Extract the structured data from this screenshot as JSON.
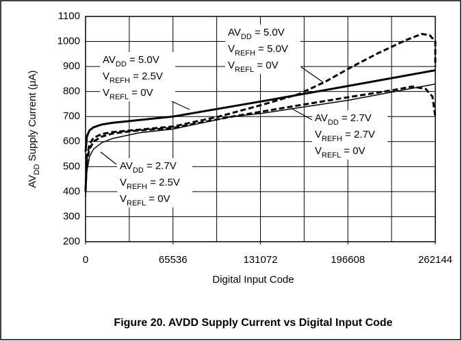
{
  "chart_data": {
    "type": "line",
    "caption": "Figure 20. AVDD Supply Current vs Digital Input Code",
    "x_label": "Digital Input Code",
    "y_label": {
      "main": "AV",
      "sub": "DD",
      "rest": " Supply Current (μA)"
    },
    "xlim": [
      0,
      262144
    ],
    "xticks": [
      0,
      65536,
      131072,
      196608,
      262144
    ],
    "xgrid": [
      0,
      32768,
      65536,
      98304,
      131072,
      163840,
      196608,
      229376,
      262144
    ],
    "ylim": [
      200,
      1100
    ],
    "yticks": [
      200,
      300,
      400,
      500,
      600,
      700,
      800,
      900,
      1000,
      1100
    ],
    "grid": true,
    "series": [
      {
        "name": "AVDD = 5.0V, VREFH = 5.0V",
        "color": "#000",
        "style": "dashed-thick",
        "x": [
          0,
          1000,
          3000,
          6000,
          12000,
          20000,
          35000,
          65536,
          100000,
          131072,
          160000,
          180000,
          200000,
          220000,
          240000,
          252000,
          258000,
          262144,
          262144
        ],
        "values": [
          400,
          540,
          590,
          615,
          630,
          638,
          645,
          660,
          700,
          745,
          790,
          840,
          900,
          955,
          1005,
          1030,
          1025,
          1000,
          900
        ]
      },
      {
        "name": "AVDD = 5.0V, VREFH = 2.5V",
        "color": "#000",
        "style": "solid-thick",
        "x": [
          0,
          1000,
          3000,
          6000,
          12000,
          20000,
          35000,
          65536,
          131072,
          196608,
          262144
        ],
        "values": [
          560,
          620,
          645,
          657,
          668,
          675,
          683,
          700,
          760,
          822,
          885
        ]
      },
      {
        "name": "AVDD = 2.7V, VREFH = 2.7V",
        "color": "#000",
        "style": "dashed-thick",
        "x": [
          0,
          1000,
          3000,
          6000,
          12000,
          20000,
          35000,
          65536,
          110000,
          160000,
          200000,
          230000,
          245000,
          255000,
          260000,
          262144
        ],
        "values": [
          410,
          520,
          570,
          600,
          620,
          632,
          642,
          655,
          700,
          745,
          780,
          805,
          820,
          810,
          780,
          700
        ]
      },
      {
        "name": "AVDD = 2.7V, VREFH = 2.5V",
        "color": "#000",
        "style": "solid-thin",
        "x": [
          0,
          1000,
          3000,
          6000,
          12000,
          20000,
          40000,
          65536,
          110000,
          131072,
          196608,
          262144
        ],
        "values": [
          380,
          480,
          540,
          570,
          595,
          612,
          635,
          650,
          700,
          712,
          765,
          830
        ]
      }
    ],
    "annotations": [
      [
        {
          "main": "AV",
          "sub": "DD",
          "rest": " = 5.0V"
        },
        {
          "main": "V",
          "sub": "REFH",
          "rest": " = 5.0V"
        },
        {
          "main": "V",
          "sub": "REFL",
          "rest": " = 0V"
        }
      ],
      [
        {
          "main": "AV",
          "sub": "DD",
          "rest": " = 5.0V"
        },
        {
          "main": "V",
          "sub": "REFH",
          "rest": " = 2.5V"
        },
        {
          "main": "V",
          "sub": "REFL",
          "rest": " = 0V"
        }
      ],
      [
        {
          "main": "AV",
          "sub": "DD",
          "rest": " = 2.7V"
        },
        {
          "main": "V",
          "sub": "REFH",
          "rest": " = 2.7V"
        },
        {
          "main": "V",
          "sub": "REFL",
          "rest": " = 0V"
        }
      ],
      [
        {
          "main": "AV",
          "sub": "DD",
          "rest": " = 2.7V"
        },
        {
          "main": "V",
          "sub": "REFH",
          "rest": " = 2.5V"
        },
        {
          "main": "V",
          "sub": "REFL",
          "rest": " = 0V"
        }
      ]
    ]
  }
}
